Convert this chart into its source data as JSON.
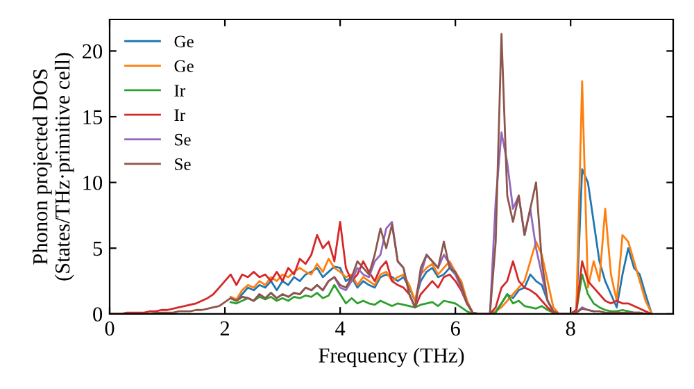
{
  "chart_data": {
    "type": "line",
    "xlabel": "Frequency (THz)",
    "ylabel": "Phonon projected DOS\n(States/THz·primitive cell)",
    "x": [
      0,
      0.1,
      0.2,
      0.3,
      0.4,
      0.5,
      0.6,
      0.7,
      0.8,
      0.9,
      1.0,
      1.1,
      1.2,
      1.3,
      1.4,
      1.5,
      1.6,
      1.7,
      1.8,
      1.9,
      2.0,
      2.1,
      2.2,
      2.3,
      2.4,
      2.5,
      2.6,
      2.7,
      2.8,
      2.9,
      3.0,
      3.1,
      3.2,
      3.3,
      3.4,
      3.5,
      3.6,
      3.7,
      3.8,
      3.9,
      4.0,
      4.1,
      4.2,
      4.3,
      4.4,
      4.5,
      4.6,
      4.7,
      4.8,
      4.9,
      5.0,
      5.1,
      5.2,
      5.3,
      5.4,
      5.5,
      5.6,
      5.7,
      5.8,
      5.9,
      6.0,
      6.1,
      6.2,
      6.3,
      6.4,
      6.5,
      6.6,
      6.7,
      6.8,
      6.9,
      7.0,
      7.1,
      7.2,
      7.3,
      7.4,
      7.5,
      7.6,
      7.7,
      7.8,
      7.9,
      8.0,
      8.1,
      8.2,
      8.3,
      8.4,
      8.5,
      8.6,
      8.7,
      8.8,
      8.9,
      9.0,
      9.1,
      9.2,
      9.3,
      9.4
    ],
    "series": [
      {
        "name": "Ge",
        "color": "#1f77b4",
        "x": [
          2.1,
          2.2,
          2.3,
          2.4,
          2.5,
          2.6,
          2.7,
          2.8,
          2.9,
          3.0,
          3.1,
          3.2,
          3.3,
          3.4,
          3.5,
          3.6,
          3.7,
          3.8,
          3.9,
          4.0,
          4.1,
          4.2,
          4.3,
          4.4,
          4.5,
          4.6,
          4.7,
          4.8,
          4.9,
          5.0,
          5.1,
          5.2,
          5.3,
          5.4,
          5.5,
          5.6,
          5.7,
          5.8,
          5.9,
          6.0,
          6.1,
          6.2,
          6.3,
          6.4,
          6.5,
          6.6,
          6.7,
          6.8,
          6.9,
          7.0,
          7.1,
          7.2,
          7.3,
          7.4,
          7.5,
          7.6,
          7.7,
          7.8,
          7.9,
          8.0,
          8.1,
          8.2,
          8.3,
          8.4,
          8.5,
          8.6,
          8.7,
          8.8,
          8.9,
          9.0,
          9.1,
          9.2,
          9.3,
          9.4
        ],
        "values": [
          1.2,
          1.0,
          1.5,
          2.0,
          1.8,
          2.2,
          2.0,
          2.5,
          1.8,
          2.5,
          2.2,
          2.8,
          2.5,
          3.0,
          3.2,
          3.5,
          2.8,
          3.2,
          3.6,
          3.5,
          2.5,
          2.8,
          2.0,
          2.5,
          2.2,
          2.0,
          2.8,
          3.0,
          2.8,
          2.5,
          2.8,
          2.0,
          1.0,
          2.5,
          3.2,
          3.5,
          2.8,
          3.0,
          3.5,
          3.0,
          2.5,
          1.0,
          0.1,
          0,
          0,
          0,
          0.2,
          0.8,
          1.5,
          1.2,
          1.8,
          2.0,
          3.0,
          2.5,
          2.2,
          1.0,
          0.2,
          0,
          0,
          0,
          0.3,
          11.0,
          10.0,
          7.0,
          4.0,
          2.5,
          1.5,
          0.5,
          3.0,
          5.0,
          3.5,
          3.0,
          1.5,
          0.1
        ]
      },
      {
        "name": "Ge",
        "color": "#ff7f0e",
        "x": [
          2.1,
          2.2,
          2.3,
          2.4,
          2.5,
          2.6,
          2.7,
          2.8,
          2.9,
          3.0,
          3.1,
          3.2,
          3.3,
          3.4,
          3.5,
          3.6,
          3.7,
          3.8,
          3.9,
          4.0,
          4.1,
          4.2,
          4.3,
          4.4,
          4.5,
          4.6,
          4.7,
          4.8,
          4.9,
          5.0,
          5.1,
          5.2,
          5.3,
          5.4,
          5.5,
          5.6,
          5.7,
          5.8,
          5.9,
          6.0,
          6.1,
          6.2,
          6.3,
          6.4,
          6.5,
          6.6,
          6.7,
          6.8,
          6.9,
          7.0,
          7.1,
          7.2,
          7.3,
          7.4,
          7.5,
          7.6,
          7.7,
          7.8,
          7.9,
          8.0,
          8.1,
          8.2,
          8.3,
          8.4,
          8.5,
          8.6,
          8.7,
          8.8,
          8.9,
          9.0,
          9.1,
          9.2,
          9.3,
          9.4
        ],
        "values": [
          1.3,
          1.1,
          1.8,
          2.2,
          2.0,
          2.5,
          2.2,
          2.8,
          2.5,
          3.0,
          2.8,
          3.2,
          3.5,
          3.2,
          3.0,
          3.8,
          3.2,
          4.2,
          3.5,
          3.2,
          2.8,
          3.0,
          2.2,
          2.8,
          2.5,
          2.2,
          3.0,
          3.2,
          2.5,
          2.8,
          3.0,
          2.2,
          1.0,
          3.0,
          3.5,
          3.8,
          3.0,
          3.5,
          4.0,
          3.2,
          2.5,
          1.0,
          0.1,
          0,
          0,
          0,
          0.2,
          0.5,
          1.0,
          1.5,
          2.0,
          2.5,
          4.0,
          5.5,
          4.5,
          2.5,
          0.5,
          0,
          0,
          0,
          0.3,
          17.7,
          2.0,
          4.0,
          2.5,
          8.0,
          3.0,
          1.0,
          6.0,
          5.5,
          4.0,
          2.5,
          1.0,
          0.1
        ]
      },
      {
        "name": "Ir",
        "color": "#2ca02c",
        "x": [
          2.1,
          2.2,
          2.3,
          2.4,
          2.5,
          2.6,
          2.7,
          2.8,
          2.9,
          3.0,
          3.1,
          3.2,
          3.3,
          3.4,
          3.5,
          3.6,
          3.7,
          3.8,
          3.9,
          4.0,
          4.1,
          4.2,
          4.3,
          4.4,
          4.5,
          4.6,
          4.7,
          4.8,
          4.9,
          5.0,
          5.1,
          5.2,
          5.3,
          5.4,
          5.5,
          5.6,
          5.7,
          5.8,
          5.9,
          6.0,
          6.1,
          6.2,
          6.3,
          6.4,
          6.5,
          6.6,
          6.7,
          6.8,
          6.9,
          7.0,
          7.1,
          7.2,
          7.3,
          7.4,
          7.5,
          7.6,
          7.7,
          7.8,
          7.9,
          8.0,
          8.1,
          8.2,
          8.3,
          8.4,
          8.5,
          8.6,
          8.7,
          8.8,
          8.9,
          9.0,
          9.1,
          9.2,
          9.3,
          9.4
        ],
        "values": [
          0.9,
          0.8,
          1.0,
          1.2,
          1.0,
          1.3,
          1.1,
          1.3,
          1.0,
          1.2,
          1.0,
          1.3,
          1.2,
          1.4,
          1.3,
          1.6,
          1.2,
          1.4,
          2.2,
          1.5,
          0.8,
          1.2,
          0.8,
          1.0,
          0.8,
          0.7,
          1.0,
          0.8,
          0.6,
          0.8,
          0.7,
          0.6,
          0.5,
          0.7,
          0.8,
          0.9,
          0.6,
          1.0,
          0.9,
          0.8,
          0.5,
          0.2,
          0,
          0,
          0,
          0,
          0.1,
          0.8,
          1.5,
          0.8,
          1.0,
          0.6,
          0.5,
          0.4,
          0.6,
          0.3,
          0.1,
          0,
          0,
          0,
          0.2,
          3.0,
          1.5,
          0.8,
          0.5,
          0.3,
          0.2,
          0.2,
          0.3,
          0.2,
          0.1,
          0.1,
          0,
          0
        ]
      },
      {
        "name": "Ir",
        "color": "#d62728",
        "values": [
          0,
          0,
          0,
          0.1,
          0.1,
          0.1,
          0.1,
          0.2,
          0.2,
          0.3,
          0.3,
          0.4,
          0.5,
          0.6,
          0.7,
          0.8,
          1.0,
          1.2,
          1.5,
          2.0,
          2.5,
          3.0,
          2.2,
          3.0,
          2.8,
          3.2,
          2.8,
          3.0,
          2.5,
          3.2,
          2.5,
          3.5,
          3.0,
          4.2,
          3.8,
          4.5,
          6.0,
          5.0,
          5.5,
          4.0,
          7.0,
          3.5,
          2.5,
          3.0,
          4.0,
          3.2,
          2.5,
          3.5,
          4.0,
          2.5,
          2.2,
          2.0,
          1.5,
          0.5,
          1.5,
          2.0,
          2.5,
          2.0,
          2.8,
          3.0,
          2.5,
          1.8,
          0.8,
          0.1,
          0,
          0,
          0,
          0.5,
          2.0,
          2.5,
          4.0,
          2.5,
          2.0,
          1.8,
          1.5,
          1.0,
          0.5,
          0.1,
          0,
          0,
          0,
          0.3,
          4.0,
          2.5,
          2.0,
          1.5,
          1.0,
          0.8,
          1.0,
          0.8,
          0.8,
          0.6,
          0.4,
          0.2,
          0
        ]
      },
      {
        "name": "Se",
        "color": "#9467bd",
        "x": [
          2.1,
          2.2,
          2.3,
          2.4,
          2.5,
          2.6,
          2.7,
          2.8,
          2.9,
          3.0,
          3.1,
          3.2,
          3.3,
          3.4,
          3.5,
          3.6,
          3.7,
          3.8,
          3.9,
          4.0,
          4.1,
          4.2,
          4.3,
          4.4,
          4.5,
          4.6,
          4.7,
          4.8,
          4.9,
          5.0,
          5.1,
          5.2,
          5.3,
          5.4,
          5.5,
          5.6,
          5.7,
          5.8,
          5.9,
          6.0,
          6.1,
          6.2,
          6.3,
          6.4,
          6.5,
          6.6,
          6.7,
          6.8,
          6.9,
          7.0,
          7.1,
          7.2,
          7.3,
          7.4,
          7.5,
          7.6,
          7.7,
          7.8,
          7.9,
          8.0,
          8.1,
          8.2,
          8.3,
          8.4
        ],
        "values": [
          1.2,
          1.0,
          1.3,
          1.2,
          1.0,
          1.5,
          1.2,
          1.6,
          1.2,
          1.5,
          1.3,
          1.6,
          1.5,
          2.0,
          1.8,
          2.2,
          1.8,
          2.5,
          2.8,
          2.0,
          1.8,
          2.5,
          3.5,
          3.0,
          2.8,
          4.0,
          4.5,
          6.5,
          7.0,
          4.0,
          3.5,
          1.5,
          0.5,
          3.0,
          4.5,
          4.0,
          3.5,
          4.5,
          3.8,
          3.0,
          2.0,
          0.8,
          0.1,
          0,
          0,
          0,
          8.6,
          13.8,
          11.5,
          8.0,
          9.0,
          6.0,
          8.0,
          5.0,
          3.0,
          1.0,
          0.2,
          0,
          0,
          0,
          0.1,
          0.5,
          0.3,
          0.2
        ]
      },
      {
        "name": "Se",
        "color": "#8c564b",
        "values": [
          0,
          0,
          0,
          0,
          0,
          0,
          0,
          0,
          0.1,
          0.1,
          0.1,
          0.1,
          0.2,
          0.2,
          0.2,
          0.3,
          0.3,
          0.4,
          0.5,
          0.6,
          0.9,
          1.2,
          1.0,
          1.3,
          1.2,
          1.0,
          1.5,
          1.2,
          1.6,
          1.2,
          1.5,
          1.3,
          1.6,
          1.5,
          2.0,
          1.8,
          2.2,
          1.8,
          2.5,
          2.8,
          2.2,
          2.0,
          2.8,
          4.0,
          3.5,
          3.0,
          4.5,
          6.5,
          5.0,
          6.8,
          4.0,
          3.5,
          1.5,
          0.5,
          3.5,
          4.5,
          4.0,
          3.5,
          5.5,
          3.5,
          3.2,
          2.2,
          0.8,
          0.1,
          0,
          0,
          0,
          5.5,
          21.3,
          9.0,
          7.0,
          9.0,
          6.0,
          8.0,
          10.0,
          4.0,
          1.0,
          0.2,
          0,
          0,
          0,
          0.1,
          0.4,
          0.3,
          0.2,
          0.2,
          0.1,
          0.1,
          0.1,
          0.1,
          0.1,
          0.1,
          0.1,
          0,
          0
        ]
      }
    ],
    "xlim": [
      0,
      9.78
    ],
    "ylim": [
      0,
      22.4
    ],
    "xticks": [
      0,
      2,
      4,
      6,
      8
    ],
    "yticks": [
      0,
      5,
      10,
      15,
      20
    ],
    "grid": false,
    "legend": "top left",
    "marker": "none",
    "line_style": "solid"
  }
}
